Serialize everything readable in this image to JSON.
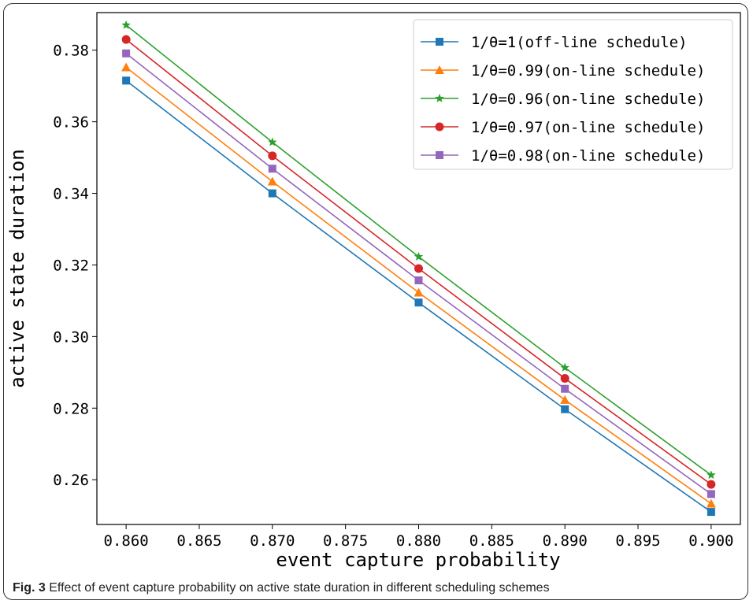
{
  "caption": {
    "label": "Fig. 3",
    "text": "Effect of event capture probability on active state duration in different scheduling schemes"
  },
  "chart_data": {
    "type": "line",
    "title": "",
    "xlabel": "event capture probability",
    "ylabel": "active state duration",
    "xlim": [
      0.858,
      0.902
    ],
    "ylim": [
      0.2475,
      0.3905
    ],
    "x_ticks": [
      "0.860",
      "0.865",
      "0.870",
      "0.875",
      "0.880",
      "0.885",
      "0.890",
      "0.895",
      "0.900"
    ],
    "y_ticks": [
      "0.26",
      "0.28",
      "0.30",
      "0.32",
      "0.34",
      "0.36",
      "0.38"
    ],
    "grid": false,
    "legend_position": "top-right",
    "x": [
      0.86,
      0.87,
      0.88,
      0.89,
      0.9
    ],
    "series": [
      {
        "name": "1/θ=1(off-line schedule)",
        "color": "#1f77b4",
        "marker": "square",
        "values": [
          0.3715,
          0.34,
          0.3095,
          0.2797,
          0.251
        ]
      },
      {
        "name": "1/θ=0.99(on-line schedule)",
        "color": "#ff7f0e",
        "marker": "triangle",
        "values": [
          0.3752,
          0.3433,
          0.3123,
          0.2823,
          0.2533
        ]
      },
      {
        "name": "1/θ=0.96(on-line schedule)",
        "color": "#2ca02c",
        "marker": "star",
        "values": [
          0.387,
          0.3543,
          0.3223,
          0.2913,
          0.2613
        ]
      },
      {
        "name": "1/θ=0.97(on-line schedule)",
        "color": "#d62728",
        "marker": "circle",
        "values": [
          0.383,
          0.3505,
          0.319,
          0.2883,
          0.2587
        ]
      },
      {
        "name": "1/θ=0.98(on-line schedule)",
        "color": "#9467bd",
        "marker": "square",
        "values": [
          0.3791,
          0.3469,
          0.3157,
          0.2854,
          0.256
        ]
      }
    ]
  }
}
